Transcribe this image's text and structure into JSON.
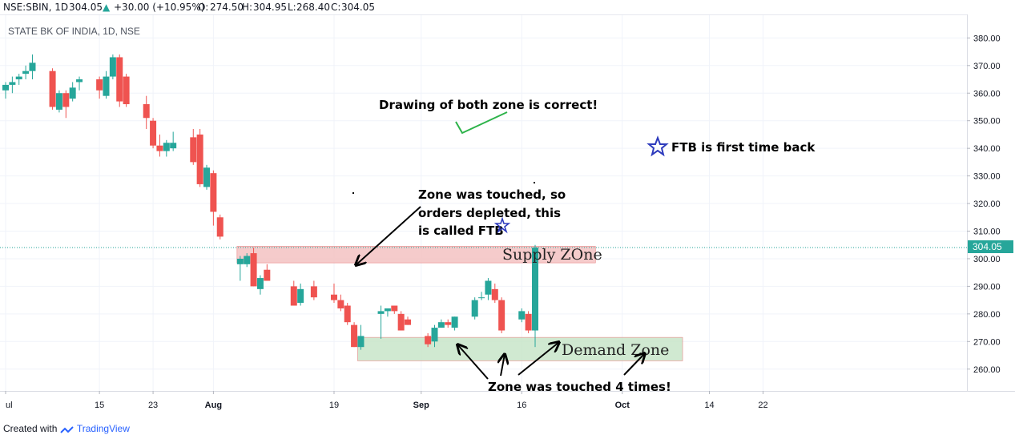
{
  "header": {
    "symbol": "NSE:SBIN, 1D",
    "last": "304.05",
    "change_arrow": "▲",
    "change": "+30.00 (+10.95%)",
    "o_label": "O:",
    "o_value": "274.50",
    "h_label": "H:",
    "h_value": "304.95",
    "l_label": "L:",
    "l_value": "268.40",
    "c_label": "C:",
    "c_value": "304.05"
  },
  "chart_title": "STATE BK OF INDIA, 1D, NSE",
  "price_tag": "304.05",
  "footer": {
    "created_with": "Created with",
    "brand": "TradingView"
  },
  "colors": {
    "up": "#26a69a",
    "down": "#ef5350",
    "supply": "#f4c2c2",
    "demand": "#c8e6c9",
    "star": "#2e3bbd",
    "check": "#2db34a"
  },
  "annotations": {
    "both_zones": "Drawing of both zone is correct!",
    "ftb_def": "FTB is first time back",
    "touched_1": "Zone was touched, so",
    "touched_2": "orders depleted, this",
    "touched_3": "is called FTB",
    "supply_zone": "Supply ZOne",
    "demand_zone": "Demand Zone",
    "touched_4": "Zone was touched 4 times!"
  },
  "chart_data": {
    "type": "candlestick",
    "y_axis": {
      "min": 250,
      "max": 385,
      "ticks": [
        380,
        370,
        360,
        350,
        340,
        330,
        320,
        310,
        300,
        290,
        280,
        270,
        260
      ],
      "tick_labels": [
        "380.00",
        "370.00",
        "360.00",
        "350.00",
        "340.00",
        "330.00",
        "320.00",
        "310.00",
        "300.00",
        "290.00",
        "280.00",
        "270.00",
        "260.00"
      ]
    },
    "x_axis": {
      "tick_labels": [
        "ul",
        "15",
        "23",
        "Aug",
        "19",
        "Sep",
        "16",
        "Oct",
        "14",
        "22"
      ],
      "tick_dates": [
        "2019-07-01",
        "2019-07-15",
        "2019-07-23",
        "2019-08-01",
        "2019-08-19",
        "2019-09-01",
        "2019-09-16",
        "2019-10-01",
        "2019-10-14",
        "2019-10-22"
      ]
    },
    "grid": true,
    "last_price_line": 304.05,
    "candles": [
      {
        "date": "2019-07-01",
        "o": 361,
        "h": 364,
        "l": 358,
        "c": 363
      },
      {
        "date": "2019-07-02",
        "o": 363,
        "h": 366,
        "l": 360,
        "c": 364
      },
      {
        "date": "2019-07-03",
        "o": 365,
        "h": 367,
        "l": 363,
        "c": 366
      },
      {
        "date": "2019-07-04",
        "o": 367,
        "h": 370,
        "l": 365,
        "c": 368
      },
      {
        "date": "2019-07-05",
        "o": 368,
        "h": 374,
        "l": 365,
        "c": 371
      },
      {
        "date": "2019-07-08",
        "o": 368,
        "h": 369,
        "l": 354,
        "c": 355
      },
      {
        "date": "2019-07-09",
        "o": 354,
        "h": 361,
        "l": 353,
        "c": 360
      },
      {
        "date": "2019-07-10",
        "o": 360,
        "h": 361,
        "l": 351,
        "c": 355
      },
      {
        "date": "2019-07-11",
        "o": 358,
        "h": 364,
        "l": 357,
        "c": 362
      },
      {
        "date": "2019-07-12",
        "o": 364,
        "h": 366,
        "l": 361,
        "c": 365
      },
      {
        "date": "2019-07-15",
        "o": 365,
        "h": 366,
        "l": 358,
        "c": 361
      },
      {
        "date": "2019-07-16",
        "o": 359,
        "h": 368,
        "l": 358,
        "c": 366
      },
      {
        "date": "2019-07-17",
        "o": 366,
        "h": 374,
        "l": 365,
        "c": 373
      },
      {
        "date": "2019-07-18",
        "o": 373,
        "h": 374,
        "l": 355,
        "c": 357
      },
      {
        "date": "2019-07-19",
        "o": 366,
        "h": 367,
        "l": 355,
        "c": 356
      },
      {
        "date": "2019-07-22",
        "o": 356,
        "h": 359,
        "l": 347,
        "c": 351
      },
      {
        "date": "2019-07-23",
        "o": 350,
        "h": 351,
        "l": 340,
        "c": 341
      },
      {
        "date": "2019-07-24",
        "o": 341,
        "h": 345,
        "l": 337,
        "c": 339
      },
      {
        "date": "2019-07-25",
        "o": 339,
        "h": 343,
        "l": 337,
        "c": 342
      },
      {
        "date": "2019-07-26",
        "o": 340,
        "h": 346,
        "l": 339,
        "c": 342
      },
      {
        "date": "2019-07-29",
        "o": 344,
        "h": 347,
        "l": 334,
        "c": 335
      },
      {
        "date": "2019-07-30",
        "o": 345,
        "h": 347,
        "l": 326,
        "c": 327
      },
      {
        "date": "2019-07-31",
        "o": 326,
        "h": 334,
        "l": 325,
        "c": 333
      },
      {
        "date": "2019-08-01",
        "o": 331,
        "h": 332,
        "l": 312,
        "c": 317
      },
      {
        "date": "2019-08-02",
        "o": 315,
        "h": 316,
        "l": 307,
        "c": 308
      },
      {
        "date": "2019-08-05",
        "o": 298,
        "h": 301,
        "l": 292,
        "c": 300
      },
      {
        "date": "2019-08-06",
        "o": 298,
        "h": 302,
        "l": 297,
        "c": 301
      },
      {
        "date": "2019-08-07",
        "o": 302,
        "h": 304,
        "l": 290,
        "c": 290
      },
      {
        "date": "2019-08-08",
        "o": 289,
        "h": 294,
        "l": 287,
        "c": 293
      },
      {
        "date": "2019-08-09",
        "o": 296,
        "h": 298,
        "l": 292,
        "c": 292
      },
      {
        "date": "2019-08-13",
        "o": 290,
        "h": 292,
        "l": 283,
        "c": 283
      },
      {
        "date": "2019-08-14",
        "o": 284,
        "h": 291,
        "l": 283,
        "c": 289
      },
      {
        "date": "2019-08-16",
        "o": 290,
        "h": 292,
        "l": 285,
        "c": 286
      },
      {
        "date": "2019-08-19",
        "o": 287,
        "h": 291,
        "l": 284,
        "c": 285
      },
      {
        "date": "2019-08-20",
        "o": 285,
        "h": 287,
        "l": 281,
        "c": 282
      },
      {
        "date": "2019-08-21",
        "o": 283,
        "h": 284,
        "l": 276,
        "c": 277
      },
      {
        "date": "2019-08-22",
        "o": 276,
        "h": 277,
        "l": 268,
        "c": 268
      },
      {
        "date": "2019-08-23",
        "o": 268,
        "h": 276,
        "l": 267,
        "c": 272
      },
      {
        "date": "2019-08-26",
        "o": 280,
        "h": 283,
        "l": 271,
        "c": 281
      },
      {
        "date": "2019-08-27",
        "o": 281,
        "h": 282,
        "l": 279,
        "c": 282
      },
      {
        "date": "2019-08-28",
        "o": 283,
        "h": 283,
        "l": 280,
        "c": 281
      },
      {
        "date": "2019-08-29",
        "o": 280,
        "h": 281,
        "l": 274,
        "c": 274
      },
      {
        "date": "2019-08-30",
        "o": 278,
        "h": 279,
        "l": 276,
        "c": 276
      },
      {
        "date": "2019-09-02",
        "o": 272,
        "h": 273,
        "l": 268,
        "c": 269
      },
      {
        "date": "2019-09-03",
        "o": 270,
        "h": 276,
        "l": 268,
        "c": 275
      },
      {
        "date": "2019-09-04",
        "o": 275,
        "h": 278,
        "l": 275,
        "c": 277
      },
      {
        "date": "2019-09-05",
        "o": 277,
        "h": 278,
        "l": 275,
        "c": 276
      },
      {
        "date": "2019-09-06",
        "o": 275,
        "h": 279,
        "l": 274,
        "c": 279
      },
      {
        "date": "2019-09-09",
        "o": 279,
        "h": 286,
        "l": 278,
        "c": 285
      },
      {
        "date": "2019-09-10",
        "o": 286,
        "h": 288,
        "l": 285,
        "c": 286
      },
      {
        "date": "2019-09-11",
        "o": 287,
        "h": 293,
        "l": 285,
        "c": 292
      },
      {
        "date": "2019-09-12",
        "o": 289,
        "h": 291,
        "l": 284,
        "c": 285
      },
      {
        "date": "2019-09-13",
        "o": 285,
        "h": 286,
        "l": 273,
        "c": 274
      },
      {
        "date": "2019-09-16",
        "o": 278,
        "h": 282,
        "l": 277,
        "c": 281
      },
      {
        "date": "2019-09-17",
        "o": 280,
        "h": 281,
        "l": 273,
        "c": 274
      },
      {
        "date": "2019-09-18",
        "o": 274,
        "h": 305,
        "l": 268,
        "c": 304
      }
    ],
    "zones": [
      {
        "name": "Supply ZOne",
        "from_date": "2019-08-05",
        "to_date": "2019-09-27",
        "top": 304.5,
        "bottom": 298.5
      },
      {
        "name": "Demand Zone",
        "from_date": "2019-08-23",
        "to_date": "2019-10-10",
        "top": 271.5,
        "bottom": 263
      }
    ]
  }
}
